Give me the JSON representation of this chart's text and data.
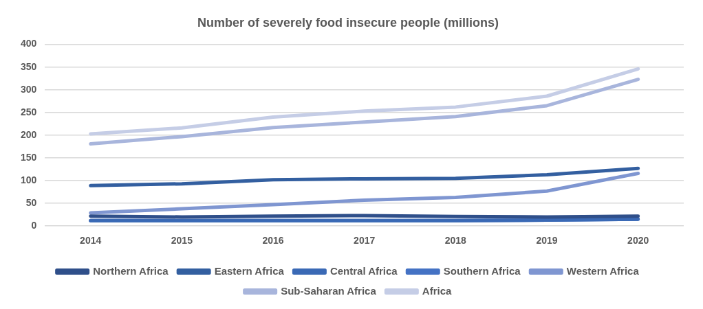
{
  "chart_data": {
    "type": "line",
    "title": "Number of severely food insecure people (millions)",
    "categories": [
      "2014",
      "2015",
      "2016",
      "2017",
      "2018",
      "2019",
      "2020"
    ],
    "series": [
      {
        "name": "Northern Africa",
        "color": "#2f4f8a",
        "values": [
          22,
          20,
          22,
          23,
          21,
          20,
          22
        ]
      },
      {
        "name": "Eastern Africa",
        "color": "#335fa0",
        "values": [
          89,
          93,
          102,
          104,
          105,
          113,
          127
        ]
      },
      {
        "name": "Central Africa",
        "color": "#3a69b5",
        "values": [
          12,
          12,
          12,
          12,
          12,
          13,
          15
        ]
      },
      {
        "name": "Southern Africa",
        "color": "#4472c4",
        "values": [
          12,
          12,
          12,
          12,
          12,
          13,
          15
        ]
      },
      {
        "name": "Western Africa",
        "color": "#7f96d1",
        "values": [
          29,
          38,
          47,
          57,
          63,
          77,
          116
        ]
      },
      {
        "name": "Sub-Saharan Africa",
        "color": "#a8b5dc",
        "values": [
          181,
          197,
          217,
          229,
          241,
          265,
          323
        ]
      },
      {
        "name": "Africa",
        "color": "#c5cde6",
        "values": [
          203,
          216,
          240,
          253,
          262,
          286,
          346
        ]
      }
    ],
    "ylim": [
      0,
      400
    ],
    "yticks": [
      0,
      50,
      100,
      150,
      200,
      250,
      300,
      350,
      400
    ],
    "grid": "y",
    "legend": "bottom",
    "marker": "none",
    "line_style": "solid"
  }
}
